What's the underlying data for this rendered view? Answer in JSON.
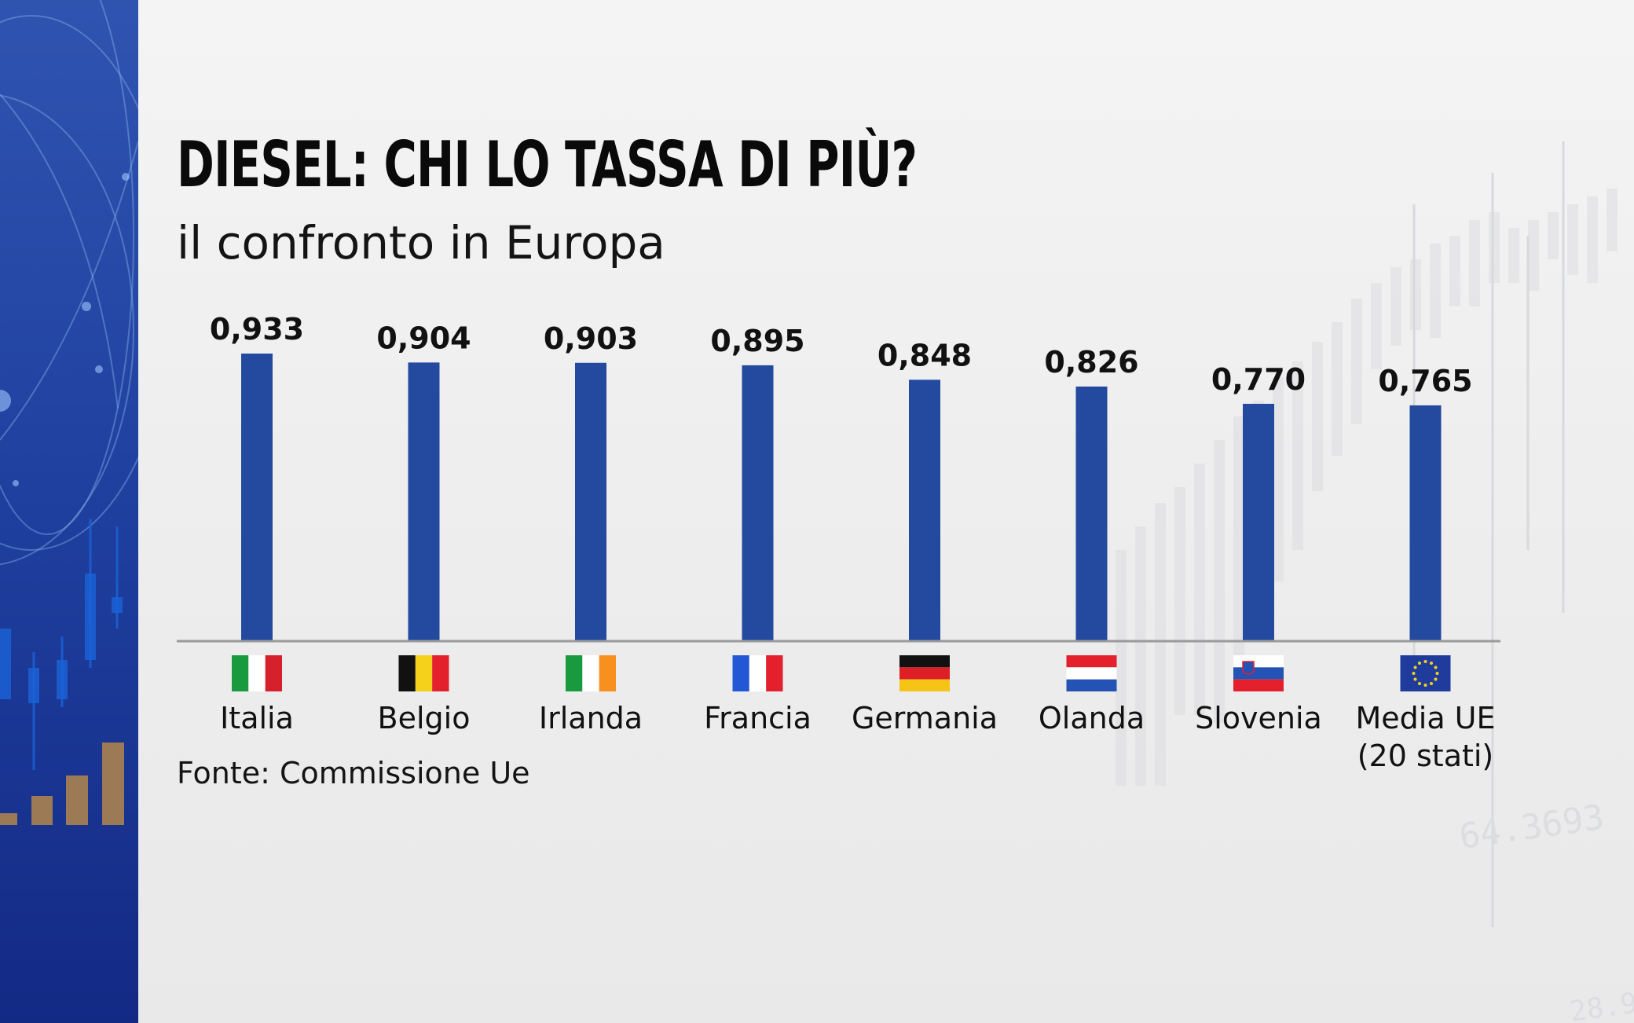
{
  "title": "DIESEL: CHI LO TASSA DI PIÙ?",
  "subtitle": "il confronto in Europa",
  "source": "Fonte: Commissione Ue",
  "colors": {
    "bar": "#234a9e",
    "side_panel": "#1f3f9e",
    "axis": "#9a9a9a"
  },
  "chart_data": {
    "type": "bar",
    "title": "DIESEL: CHI LO TASSA DI PIÙ?",
    "subtitle": "il confronto in Europa",
    "categories": [
      "Italia",
      "Belgio",
      "Irlanda",
      "Francia",
      "Germania",
      "Olanda",
      "Slovenia",
      "Media UE (20 stati)"
    ],
    "category_lines": [
      [
        "Italia"
      ],
      [
        "Belgio"
      ],
      [
        "Irlanda"
      ],
      [
        "Francia"
      ],
      [
        "Germania"
      ],
      [
        "Olanda"
      ],
      [
        "Slovenia"
      ],
      [
        "Media UE",
        "(20 stati)"
      ]
    ],
    "values": [
      0.933,
      0.904,
      0.903,
      0.895,
      0.848,
      0.826,
      0.77,
      0.765
    ],
    "value_labels": [
      "0,933",
      "0,904",
      "0,903",
      "0,895",
      "0,848",
      "0,826",
      "0,770",
      "0,765"
    ],
    "flags": [
      "italy-flag",
      "belgium-flag",
      "ireland-flag",
      "france-flag",
      "germany-flag",
      "netherlands-flag",
      "slovenia-flag",
      "eu-flag"
    ],
    "xlabel": "",
    "ylabel": "",
    "grid": false,
    "legend": "none"
  }
}
